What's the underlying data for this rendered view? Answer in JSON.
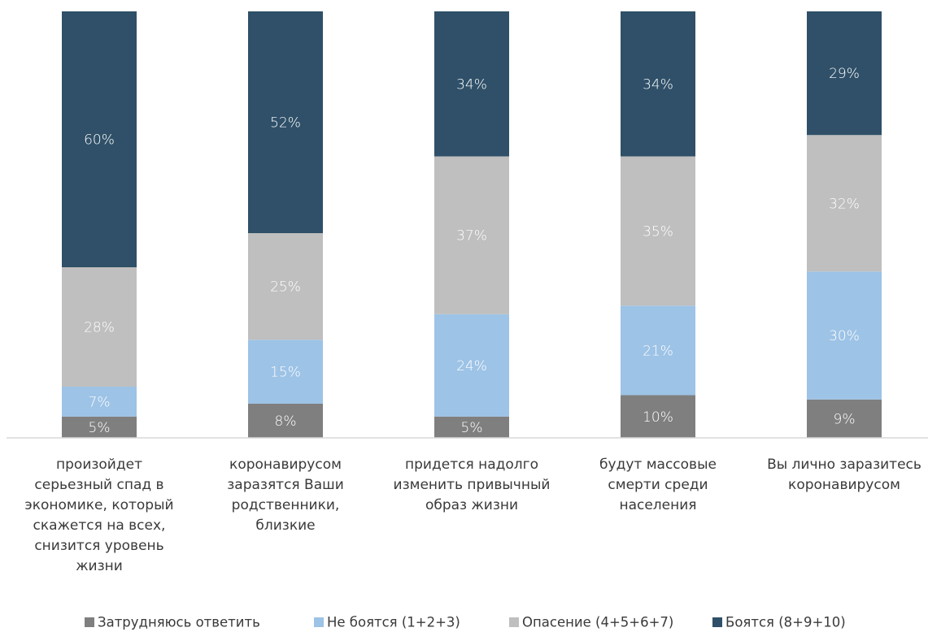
{
  "chart_data": {
    "type": "bar",
    "stacked": true,
    "categories": [
      [
        "произойдет",
        "серьезный спад в",
        "экономике, который",
        "скажется на всех,",
        "снизится уровень",
        "жизни"
      ],
      [
        "коронавирусом",
        "заразятся Ваши",
        "родственники,",
        "близкие"
      ],
      [
        "придется надолго",
        "изменить привычный",
        "образ жизни"
      ],
      [
        "будут массовые",
        "смерти среди",
        "населения"
      ],
      [
        "Вы лично заразитесь",
        "коронавирусом"
      ]
    ],
    "series": [
      {
        "name": "Затрудняюсь ответить",
        "color": "#7f7f7f",
        "values": [
          5,
          8,
          5,
          10,
          9
        ]
      },
      {
        "name": "Не боятся (1+2+3)",
        "color": "#9dc3e6",
        "values": [
          7,
          15,
          24,
          21,
          30
        ]
      },
      {
        "name": "Опасение (4+5+6+7)",
        "color": "#bfbfbf",
        "values": [
          28,
          25,
          37,
          35,
          32
        ]
      },
      {
        "name": "Боятся (8+9+10)",
        "color": "#2f5068",
        "values": [
          60,
          52,
          34,
          34,
          29
        ]
      }
    ],
    "labels": [
      [
        "5%",
        "7%",
        "28%",
        "60%"
      ],
      [
        "8%",
        "15%",
        "25%",
        "52%"
      ],
      [
        "5%",
        "24%",
        "37%",
        "34%"
      ],
      [
        "10%",
        "21%",
        "35%",
        "34%"
      ],
      [
        "9%",
        "30%",
        "32%",
        "29%"
      ]
    ],
    "ylim": [
      0,
      100
    ],
    "grid": false,
    "legend_position": "bottom"
  }
}
